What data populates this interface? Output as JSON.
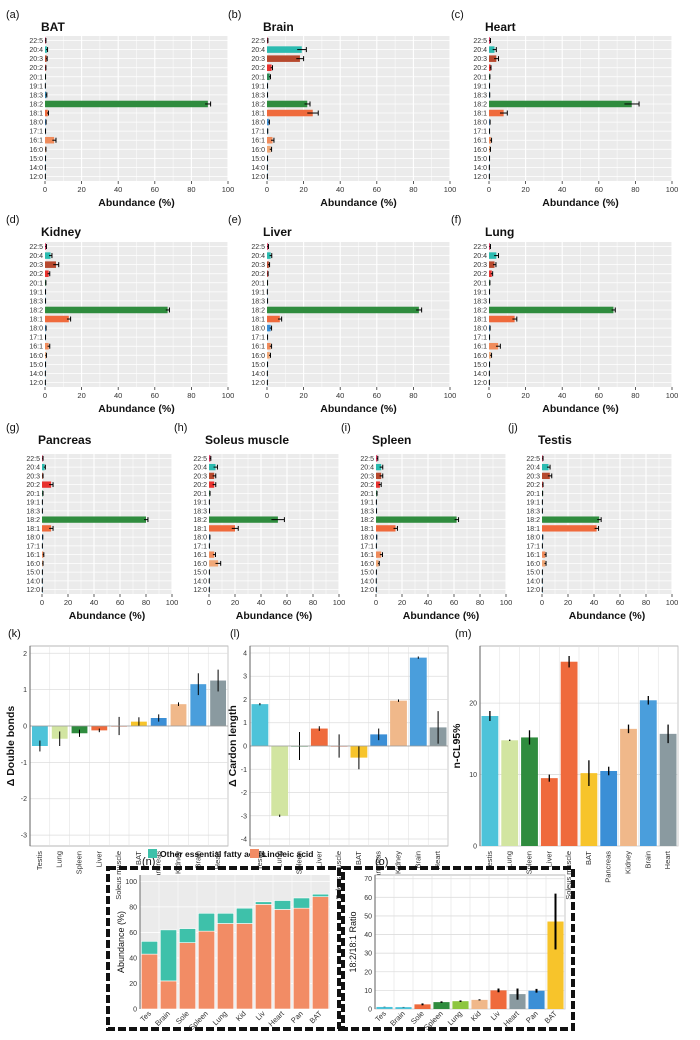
{
  "figure": {
    "fa_categories": [
      "22:5",
      "20:4",
      "20:3",
      "20:2",
      "20:1",
      "19:1",
      "18:3",
      "18:2",
      "18:1",
      "18:0",
      "17:1",
      "16:1",
      "16:0",
      "15:0",
      "14:0",
      "12:0"
    ],
    "fa_colors": {
      "22:5": "#d6305a",
      "20:4": "#2bbbb0",
      "20:3": "#b7492e",
      "20:2": "#e8322f",
      "20:1": "#2e8b57",
      "18:2": "#2f8c3e",
      "18:1": "#ef6a3c",
      "18:0": "#3b8fd6",
      "16:1": "#f08c5c",
      "16:0": "#f0a878",
      "other": "#2a7fa8"
    }
  },
  "chart_data": [
    {
      "id": "a",
      "label": "(a)",
      "type": "bar",
      "orientation": "horizontal",
      "title": "BAT",
      "xlabel": "Abundance (%)",
      "xlim": [
        0,
        100
      ],
      "xticks": [
        0,
        20,
        40,
        60,
        80,
        100
      ],
      "values": [
        0.3,
        1.0,
        0.9,
        0.3,
        0.2,
        0.1,
        0.7,
        89.0,
        1.5,
        0.4,
        0.2,
        5.0,
        0.3,
        0.2,
        0.1,
        0.1
      ],
      "errors": [
        0.2,
        0.4,
        0.3,
        0.2,
        0.1,
        0.1,
        0.3,
        1.5,
        0.4,
        0.2,
        0.1,
        1.0,
        0.2,
        0.1,
        0.1,
        0.1
      ]
    },
    {
      "id": "b",
      "label": "(b)",
      "type": "bar",
      "orientation": "horizontal",
      "title": "Brain",
      "xlabel": "Abundance (%)",
      "xlim": [
        0,
        100
      ],
      "xticks": [
        0,
        20,
        40,
        60,
        80,
        100
      ],
      "values": [
        0.3,
        19.0,
        18.0,
        2.5,
        1.5,
        0.2,
        0.2,
        22.0,
        25.0,
        1.0,
        0.3,
        3.0,
        2.0,
        0.2,
        0.1,
        0.1
      ],
      "errors": [
        0.2,
        2.5,
        2.0,
        0.5,
        0.4,
        0.1,
        0.1,
        1.5,
        3.0,
        0.3,
        0.1,
        0.8,
        0.5,
        0.1,
        0.1,
        0.1
      ]
    },
    {
      "id": "c",
      "label": "(c)",
      "type": "bar",
      "orientation": "horizontal",
      "title": "Heart",
      "xlabel": "Abundance (%)",
      "xlim": [
        0,
        100
      ],
      "xticks": [
        0,
        20,
        40,
        60,
        80,
        100
      ],
      "values": [
        0.5,
        3.0,
        4.0,
        0.8,
        0.3,
        0.2,
        0.3,
        78.0,
        8.0,
        0.4,
        0.2,
        1.0,
        0.5,
        0.2,
        0.1,
        0.1
      ],
      "errors": [
        0.3,
        1.0,
        1.2,
        0.3,
        0.2,
        0.1,
        0.1,
        4.0,
        2.0,
        0.2,
        0.1,
        0.4,
        0.3,
        0.1,
        0.1,
        0.1
      ]
    },
    {
      "id": "d",
      "label": "(d)",
      "type": "bar",
      "orientation": "horizontal",
      "title": "Kidney",
      "xlabel": "Abundance (%)",
      "xlim": [
        0,
        100
      ],
      "xticks": [
        0,
        20,
        40,
        60,
        80,
        100
      ],
      "values": [
        0.5,
        3.0,
        6.0,
        2.0,
        0.3,
        0.2,
        0.2,
        67.0,
        13.0,
        0.4,
        0.2,
        2.0,
        0.5,
        0.2,
        0.1,
        0.1
      ],
      "errors": [
        0.3,
        0.8,
        1.5,
        0.6,
        0.2,
        0.1,
        0.1,
        1.0,
        1.0,
        0.2,
        0.1,
        0.6,
        0.3,
        0.1,
        0.1,
        0.1
      ]
    },
    {
      "id": "e",
      "label": "(e)",
      "type": "bar",
      "orientation": "horizontal",
      "title": "Liver",
      "xlabel": "Abundance (%)",
      "xlim": [
        0,
        100
      ],
      "xticks": [
        0,
        20,
        40,
        60,
        80,
        100
      ],
      "values": [
        0.5,
        2.0,
        1.0,
        0.4,
        0.2,
        0.1,
        0.2,
        83.0,
        7.0,
        2.0,
        0.2,
        2.0,
        1.5,
        0.2,
        0.1,
        0.1
      ],
      "errors": [
        0.3,
        0.6,
        0.4,
        0.2,
        0.1,
        0.1,
        0.1,
        1.5,
        1.0,
        0.5,
        0.1,
        0.5,
        0.4,
        0.1,
        0.1,
        0.1
      ]
    },
    {
      "id": "f",
      "label": "(f)",
      "type": "bar",
      "orientation": "horizontal",
      "title": "Lung",
      "xlabel": "Abundance (%)",
      "xlim": [
        0,
        100
      ],
      "xticks": [
        0,
        20,
        40,
        60,
        80,
        100
      ],
      "values": [
        0.5,
        4.0,
        3.0,
        1.5,
        0.3,
        0.2,
        0.2,
        68.0,
        14.0,
        0.4,
        0.2,
        5.0,
        1.0,
        0.2,
        0.1,
        0.1
      ],
      "errors": [
        0.3,
        1.2,
        0.8,
        0.5,
        0.2,
        0.1,
        0.1,
        1.0,
        1.2,
        0.2,
        0.1,
        1.2,
        0.4,
        0.1,
        0.1,
        0.1
      ]
    },
    {
      "id": "g",
      "label": "(g)",
      "type": "bar",
      "orientation": "horizontal",
      "title": "Pancreas",
      "xlabel": "Abundance (%)",
      "xlim": [
        0,
        100
      ],
      "xticks": [
        0,
        20,
        40,
        60,
        80,
        100
      ],
      "values": [
        0.5,
        2.0,
        0.5,
        7.0,
        0.5,
        0.2,
        0.2,
        80.0,
        7.0,
        0.4,
        0.2,
        1.0,
        0.5,
        0.2,
        0.1,
        0.1
      ],
      "errors": [
        0.3,
        0.6,
        0.3,
        1.5,
        0.3,
        0.1,
        0.1,
        1.5,
        1.5,
        0.2,
        0.1,
        0.4,
        0.3,
        0.1,
        0.1,
        0.1
      ]
    },
    {
      "id": "h",
      "label": "(h)",
      "type": "bar",
      "orientation": "horizontal",
      "title": "Soleus muscle",
      "xlabel": "Abundance (%)",
      "xlim": [
        0,
        100
      ],
      "xticks": [
        0,
        20,
        40,
        60,
        80,
        100
      ],
      "values": [
        1.0,
        5.0,
        4.0,
        4.0,
        0.5,
        0.2,
        0.3,
        53.0,
        20.0,
        0.5,
        0.2,
        4.0,
        7.0,
        0.2,
        0.1,
        0.1
      ],
      "errors": [
        0.4,
        1.5,
        1.2,
        1.2,
        0.3,
        0.1,
        0.1,
        5.0,
        2.5,
        0.2,
        0.1,
        1.0,
        2.0,
        0.1,
        0.1,
        0.1
      ]
    },
    {
      "id": "i",
      "label": "(i)",
      "type": "bar",
      "orientation": "horizontal",
      "title": "Spleen",
      "xlabel": "Abundance (%)",
      "xlim": [
        0,
        100
      ],
      "xticks": [
        0,
        20,
        40,
        60,
        80,
        100
      ],
      "values": [
        1.0,
        4.0,
        4.0,
        3.0,
        0.5,
        0.2,
        0.3,
        62.0,
        15.0,
        0.4,
        0.2,
        4.0,
        2.0,
        0.2,
        0.1,
        0.1
      ],
      "errors": [
        0.4,
        1.2,
        1.2,
        1.0,
        0.3,
        0.1,
        0.1,
        1.5,
        1.5,
        0.2,
        0.1,
        1.0,
        0.5,
        0.1,
        0.1,
        0.1
      ]
    },
    {
      "id": "j",
      "label": "(j)",
      "type": "bar",
      "orientation": "horizontal",
      "title": "Testis",
      "xlabel": "Abundance (%)",
      "xlim": [
        0,
        100
      ],
      "xticks": [
        0,
        20,
        40,
        60,
        80,
        100
      ],
      "values": [
        0.5,
        5.0,
        6.0,
        0.5,
        0.3,
        0.2,
        0.2,
        44.0,
        42.0,
        0.4,
        0.2,
        2.5,
        2.5,
        0.2,
        0.1,
        0.1
      ],
      "errors": [
        0.3,
        1.2,
        1.5,
        0.3,
        0.2,
        0.1,
        0.1,
        1.5,
        1.5,
        0.2,
        0.1,
        0.6,
        0.6,
        0.1,
        0.1,
        0.1
      ]
    },
    {
      "id": "k",
      "label": "(k)",
      "type": "bar",
      "title": "",
      "ylabel": "Δ Double bonds",
      "ylim": [
        -3.3,
        2.2
      ],
      "yticks": [
        -3,
        -2,
        -1,
        0,
        1,
        2
      ],
      "categories": [
        "Testis",
        "Lung",
        "Spleen",
        "Liver",
        "Soleus muscle",
        "BAT",
        "Pancreas",
        "Kidney",
        "Brain",
        "Heart"
      ],
      "values": [
        -0.55,
        -0.35,
        -0.2,
        -0.12,
        0.0,
        0.12,
        0.22,
        0.6,
        1.15,
        1.25
      ],
      "errors": [
        0.15,
        0.2,
        0.1,
        0.05,
        0.25,
        0.12,
        0.1,
        0.05,
        0.3,
        0.3
      ],
      "colors": [
        "#4dc3d9",
        "#d2e5a1",
        "#2f8c3e",
        "#ef6a3c",
        "#ef6a3c",
        "#f7c42b",
        "#3b8fd6",
        "#f0b88a",
        "#4a9edc",
        "#8a9aa0"
      ]
    },
    {
      "id": "l",
      "label": "(l)",
      "type": "bar",
      "title": "",
      "ylabel": "Δ Cardon length",
      "ylim": [
        -4.3,
        4.3
      ],
      "yticks": [
        -4,
        -3,
        -2,
        -1,
        0,
        1,
        2,
        3,
        4
      ],
      "categories": [
        "Testis",
        "Lung",
        "Spleen",
        "Liver",
        "Soleus muscle",
        "BAT",
        "Pancreas",
        "Kidney",
        "Brain",
        "Heart"
      ],
      "values": [
        1.8,
        -3.0,
        0.0,
        0.75,
        0.0,
        -0.5,
        0.5,
        1.95,
        3.8,
        0.8
      ],
      "errors": [
        0.05,
        0.05,
        0.6,
        0.1,
        0.5,
        0.5,
        0.25,
        0.05,
        0.05,
        0.7
      ],
      "colors": [
        "#4dc3d9",
        "#d2e5a1",
        "#2f8c3e",
        "#ef6a3c",
        "#ef6a3c",
        "#f7c42b",
        "#3b8fd6",
        "#f0b88a",
        "#4a9edc",
        "#8a9aa0"
      ]
    },
    {
      "id": "m",
      "label": "(m)",
      "type": "bar",
      "title": "",
      "ylabel": "n-CL95%",
      "ylim": [
        0,
        28
      ],
      "yticks": [
        0,
        10,
        20
      ],
      "categories": [
        "Testis",
        "Lung",
        "Spleen",
        "Liver",
        "Soleus muscle",
        "BAT",
        "Pancreas",
        "Kidney",
        "Brain",
        "Heart"
      ],
      "values": [
        18.2,
        14.8,
        15.2,
        9.5,
        25.8,
        10.2,
        10.5,
        16.4,
        20.4,
        15.7
      ],
      "errors": [
        0.7,
        0.1,
        1.0,
        0.5,
        0.8,
        1.8,
        0.6,
        0.6,
        0.6,
        1.3
      ],
      "colors": [
        "#4dc3d9",
        "#d2e5a1",
        "#2f8c3e",
        "#ef6a3c",
        "#ef6a3c",
        "#f7c42b",
        "#3b8fd6",
        "#f0b88a",
        "#4a9edc",
        "#8a9aa0"
      ]
    },
    {
      "id": "n",
      "label": "(n)",
      "type": "bar",
      "stacked": true,
      "title": "",
      "ylabel": "Abundance (%)",
      "ylim": [
        0,
        105
      ],
      "yticks": [
        0,
        20,
        40,
        60,
        80,
        100
      ],
      "categories": [
        "Tes",
        "Brain",
        "Sole",
        "Spleen",
        "Lung",
        "Kid",
        "Liv",
        "Heart",
        "Pan",
        "BAT"
      ],
      "series": [
        {
          "name": "Linoleic acid",
          "color": "#f28c65",
          "values": [
            43,
            22,
            52,
            61,
            67,
            67,
            82,
            78,
            79,
            88
          ]
        },
        {
          "name": "Other essential fatty acids",
          "color": "#3ec1aa",
          "values": [
            10,
            40,
            11,
            14,
            8,
            12,
            2,
            7,
            8,
            2
          ]
        }
      ],
      "legend": [
        "Other essential fatty acids",
        "Linoleic acid"
      ]
    },
    {
      "id": "o",
      "label": "(o)",
      "type": "bar",
      "title": "",
      "ylabel": "18:2/18:1 Ratio",
      "ylim": [
        0,
        72
      ],
      "yticks": [
        0,
        10,
        20,
        30,
        40,
        50,
        60,
        70
      ],
      "categories": [
        "Tes",
        "Brain",
        "Sole",
        "Spleen",
        "Lung",
        "Kid",
        "Liv",
        "Heart",
        "Pan",
        "BAT"
      ],
      "values": [
        1.1,
        1.0,
        2.5,
        3.7,
        4.2,
        4.9,
        10.0,
        8.0,
        9.8,
        47.0
      ],
      "errors": [
        0.1,
        0.1,
        0.5,
        0.4,
        0.4,
        0.3,
        1.0,
        3.0,
        1.0,
        15.0
      ],
      "colors": [
        "#4dc3d9",
        "#4dc3d9",
        "#ef6a3c",
        "#2f8c3e",
        "#8dc63f",
        "#f0b88a",
        "#ef6a3c",
        "#8a9aa0",
        "#3b8fd6",
        "#f7c42b"
      ]
    }
  ]
}
